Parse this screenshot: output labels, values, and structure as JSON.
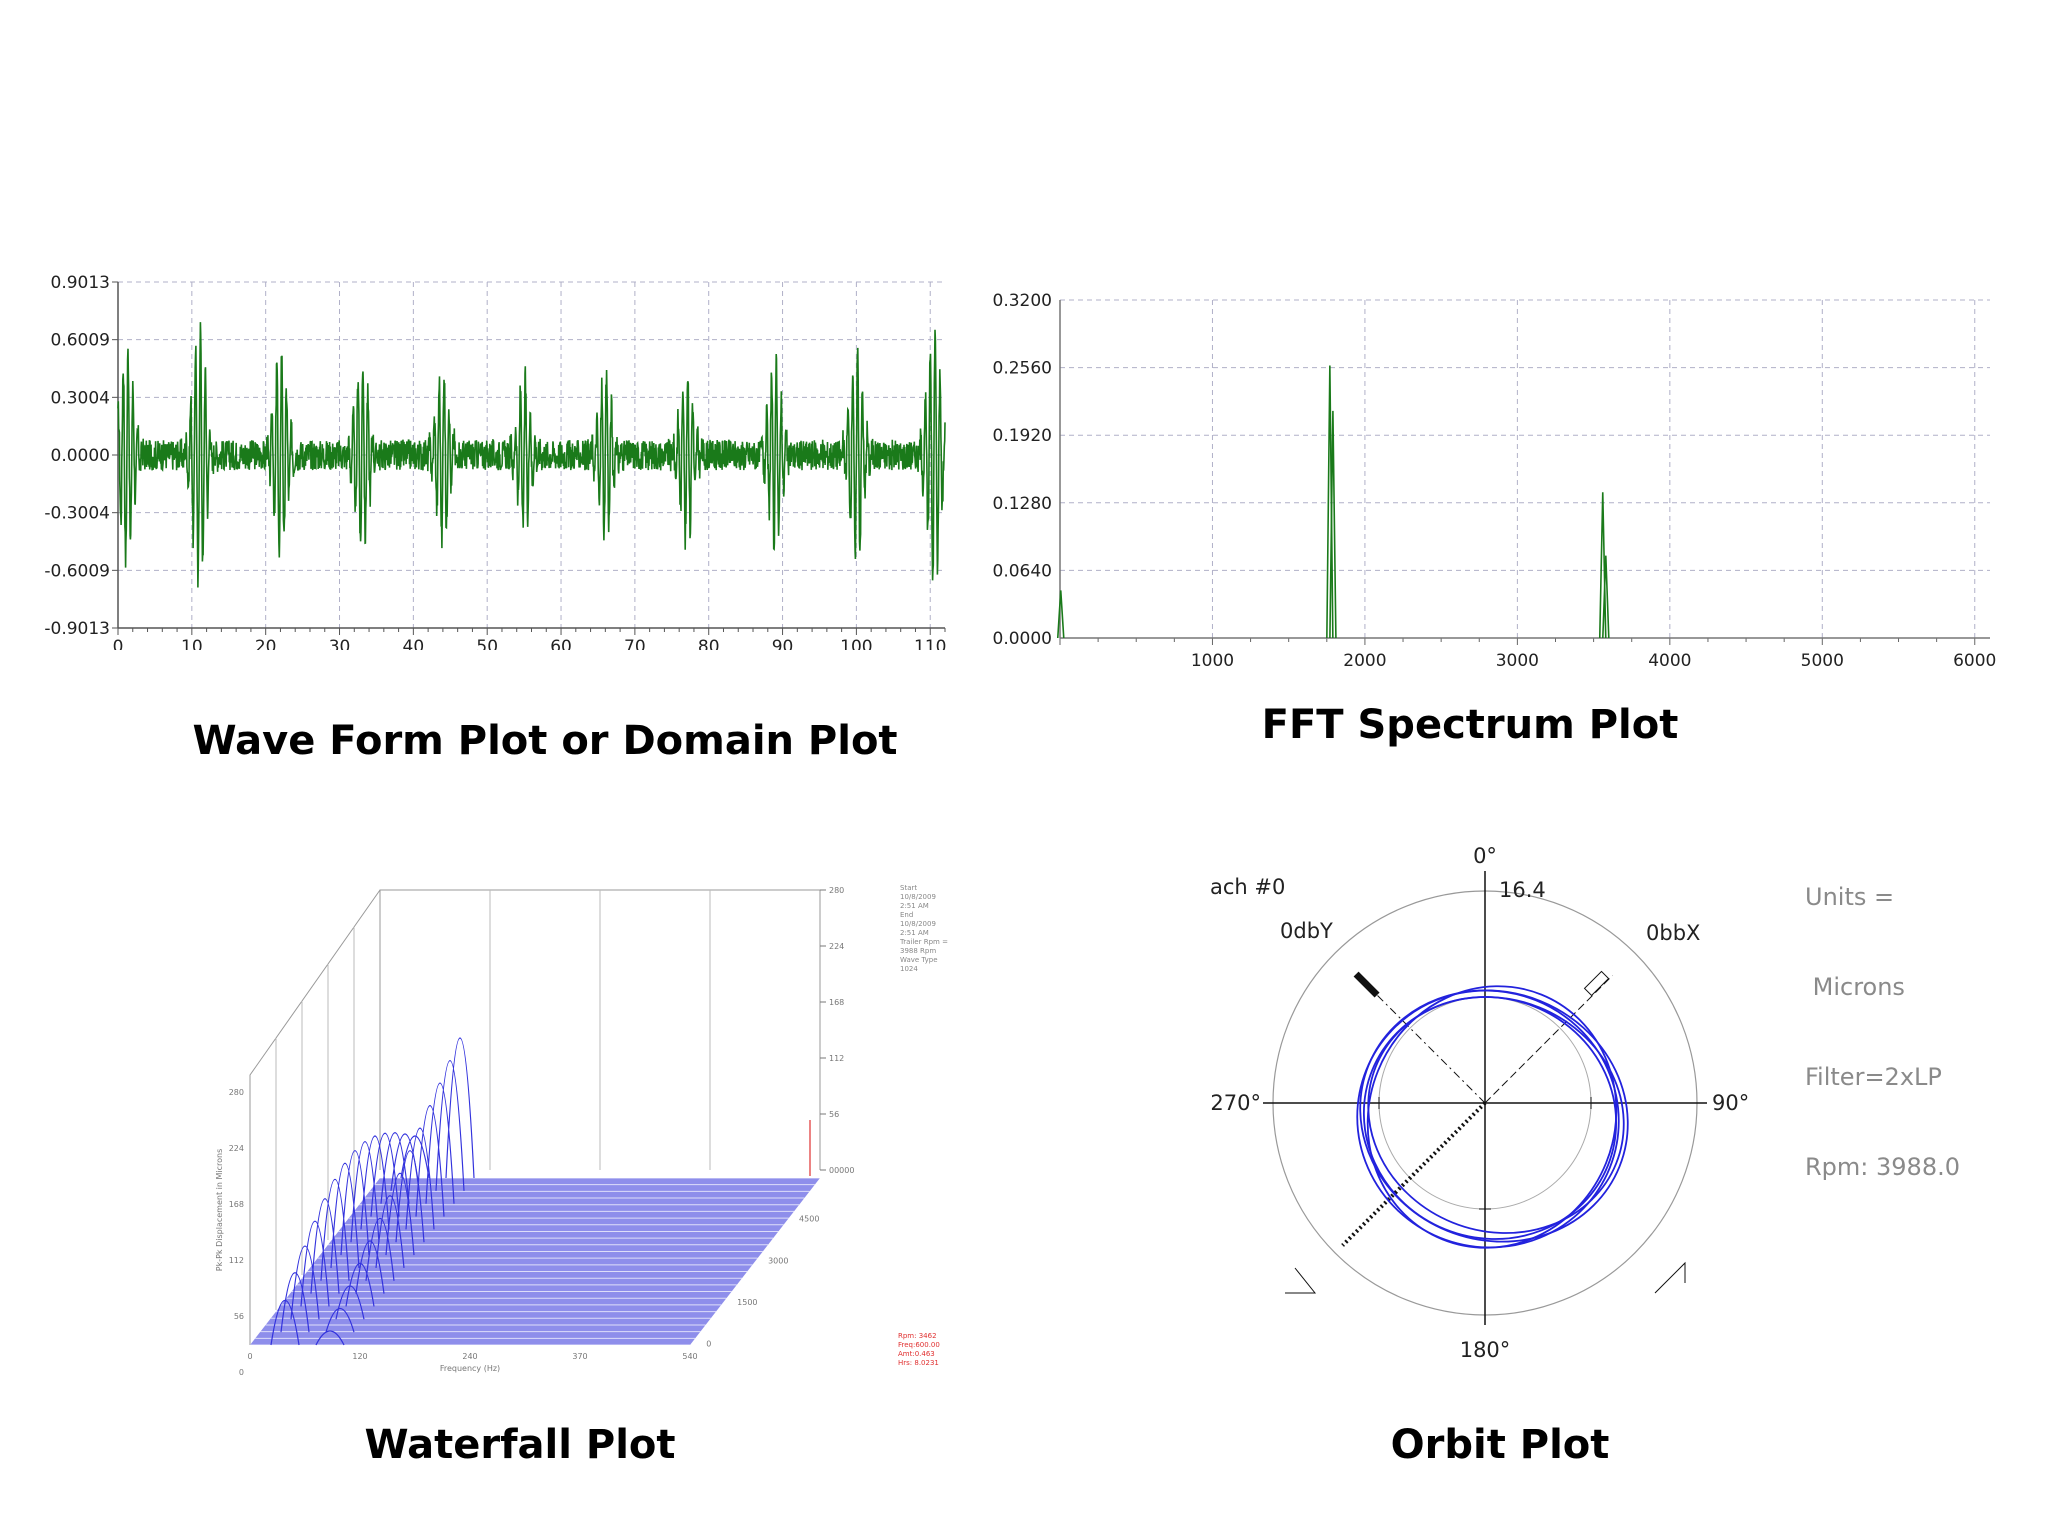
{
  "chart_data": [
    {
      "type": "line",
      "name": "waveform",
      "caption": "Wave Form Plot or Domain Plot",
      "xlim": [
        0,
        112
      ],
      "ylim": [
        -0.9013,
        0.9013
      ],
      "x_ticks": [
        "0",
        "10",
        "20",
        "30",
        "40",
        "50",
        "60",
        "70",
        "80",
        "90",
        "100",
        "110"
      ],
      "y_ticks": [
        "0.9013",
        "0.6009",
        "0.3004",
        "0.0000",
        "-0.3004",
        "-0.6009",
        "-0.9013"
      ],
      "grid": true,
      "color": "#1a7a1a",
      "series": [
        {
          "bursts": [
            {
              "x": 1.2,
              "amp": 0.55
            },
            {
              "x": 11,
              "amp": 0.68
            },
            {
              "x": 22,
              "amp": 0.55
            },
            {
              "x": 33,
              "amp": 0.5
            },
            {
              "x": 44,
              "amp": 0.45
            },
            {
              "x": 55,
              "amp": 0.4
            },
            {
              "x": 66,
              "amp": 0.42
            },
            {
              "x": 77,
              "amp": 0.45
            },
            {
              "x": 89,
              "amp": 0.48
            },
            {
              "x": 100,
              "amp": 0.55
            },
            {
              "x": 110.5,
              "amp": 0.68
            }
          ],
          "noise": 0.08
        }
      ]
    },
    {
      "type": "line",
      "name": "fft",
      "caption": "FFT Spectrum Plot",
      "xlim": [
        0,
        6100
      ],
      "ylim": [
        0,
        0.32
      ],
      "x_ticks": [
        "1000",
        "2000",
        "3000",
        "4000",
        "5000",
        "6000"
      ],
      "y_ticks": [
        "0.3200",
        "0.2560",
        "0.1920",
        "0.1280",
        "0.0640",
        "0.0000"
      ],
      "grid": true,
      "color": "#1a7a1a",
      "series": [
        {
          "peaks": [
            {
              "x": 5,
              "y": 0.045
            },
            {
              "x": 1770,
              "y": 0.258
            },
            {
              "x": 1790,
              "y": 0.215
            },
            {
              "x": 3560,
              "y": 0.138
            },
            {
              "x": 3580,
              "y": 0.078
            }
          ]
        }
      ]
    },
    {
      "type": "area",
      "name": "waterfall",
      "caption": "Waterfall Plot",
      "right_ticks": [
        "280",
        "224",
        "168",
        "112",
        "56",
        "00000"
      ],
      "left_ticks": [
        "280",
        "224",
        "168",
        "112",
        "56",
        "0"
      ],
      "bottom_ticks": [
        "0",
        "120",
        "240",
        "370",
        "540"
      ],
      "depth_ticks": [
        "4500",
        "3000",
        "1500",
        "0"
      ],
      "xlabel": "Frequency (Hz)",
      "ylabel": "Pk-Pk Displacement in Microns",
      "color": "#3333dd",
      "series": [
        {
          "peaks": [
            {
              "x": 35,
              "y": 210
            },
            {
              "x": 80,
              "y": 280
            }
          ]
        }
      ]
    },
    {
      "type": "scatter",
      "name": "orbit",
      "caption": "Orbit Plot",
      "angle_labels": [
        "0°",
        "90°",
        "180°",
        "270°"
      ],
      "scale_label": "16.4",
      "channel_label": "ach #0",
      "probe_y": "0dbY",
      "probe_x": "0bbX",
      "units_lines": [
        "Units =",
        " Microns",
        "Filter=2xLP",
        "Rpm: 3988.0"
      ],
      "color": "#2222dd"
    }
  ],
  "waterfall_notes": {
    "top": "Start\n10/8/2009\n2:51 AM\nEnd\n10/8/2009\n2:51 AM\nTrailer Rpm =\n3988 Rpm\nWave Type\n1024",
    "bottom": "Rpm: 3462\nFreq:600.00\nAmt:0.463\nHrs: 8.0231"
  }
}
